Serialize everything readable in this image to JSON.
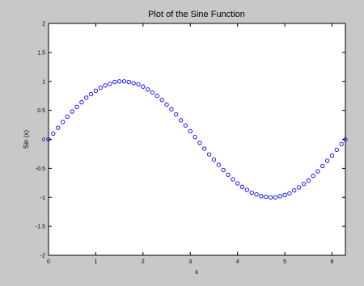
{
  "chart_data": {
    "type": "scatter",
    "title": "Plot of the Sine Function",
    "xlabel": "x",
    "ylabel": "Sin (x)",
    "xlim": [
      0,
      6.283
    ],
    "ylim": [
      -2,
      2
    ],
    "x_ticks": [
      0,
      1,
      2,
      3,
      4,
      5,
      6
    ],
    "x_tick_labels": [
      "0",
      "1",
      "2",
      "3",
      "4",
      "5",
      "6"
    ],
    "y_ticks": [
      -2,
      -1.5,
      -1,
      -0.5,
      0,
      0.5,
      1,
      1.5,
      2
    ],
    "y_tick_labels": [
      "-2",
      "-1.5",
      "-1",
      "-0.5",
      "0",
      "0.5",
      "1",
      "1.5",
      "2"
    ],
    "grid": false,
    "marker": "circle-open",
    "marker_color": "#0000ff",
    "series": [
      {
        "x": [
          0,
          0.1,
          0.2,
          0.3,
          0.4,
          0.5,
          0.6,
          0.7,
          0.8,
          0.9,
          1.0,
          1.1,
          1.2,
          1.3,
          1.4,
          1.5,
          1.6,
          1.7,
          1.8,
          1.9,
          2.0,
          2.1,
          2.2,
          2.3,
          2.4,
          2.5,
          2.6,
          2.7,
          2.8,
          2.9,
          3.0,
          3.1,
          3.2,
          3.3,
          3.4,
          3.5,
          3.6,
          3.7,
          3.8,
          3.9,
          4.0,
          4.1,
          4.2,
          4.3,
          4.4,
          4.5,
          4.6,
          4.7,
          4.8,
          4.9,
          5.0,
          5.1,
          5.2,
          5.3,
          5.4,
          5.5,
          5.6,
          5.7,
          5.8,
          5.9,
          6.0,
          6.1,
          6.2,
          6.283
        ],
        "y": [
          0,
          0.1,
          0.2,
          0.3,
          0.39,
          0.48,
          0.56,
          0.64,
          0.72,
          0.78,
          0.84,
          0.89,
          0.93,
          0.96,
          0.99,
          1.0,
          1.0,
          0.99,
          0.97,
          0.95,
          0.91,
          0.86,
          0.81,
          0.75,
          0.68,
          0.6,
          0.52,
          0.43,
          0.33,
          0.24,
          0.14,
          0.04,
          -0.06,
          -0.16,
          -0.26,
          -0.35,
          -0.44,
          -0.53,
          -0.61,
          -0.69,
          -0.76,
          -0.82,
          -0.87,
          -0.92,
          -0.95,
          -0.98,
          -0.99,
          -1.0,
          -1.0,
          -0.98,
          -0.96,
          -0.93,
          -0.88,
          -0.83,
          -0.77,
          -0.71,
          -0.63,
          -0.55,
          -0.46,
          -0.37,
          -0.28,
          -0.18,
          -0.08,
          0
        ]
      }
    ]
  }
}
